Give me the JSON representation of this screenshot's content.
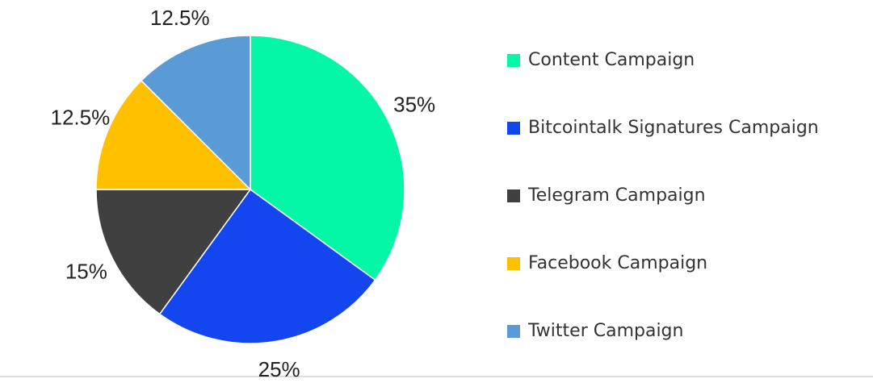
{
  "chart_data": {
    "type": "pie",
    "categories": [
      "Content Campaign",
      "Bitcointalk Signatures Campaign",
      "Telegram Campaign",
      "Facebook Campaign",
      "Twitter Campaign"
    ],
    "values": [
      35,
      25,
      15,
      12.5,
      12.5
    ],
    "value_labels": [
      "35%",
      "25%",
      "15%",
      "12.5%",
      "12.5%"
    ],
    "colors": [
      "#03f7a6",
      "#1446f0",
      "#404040",
      "#ffc000",
      "#5b9bd5"
    ],
    "legend": "right"
  }
}
